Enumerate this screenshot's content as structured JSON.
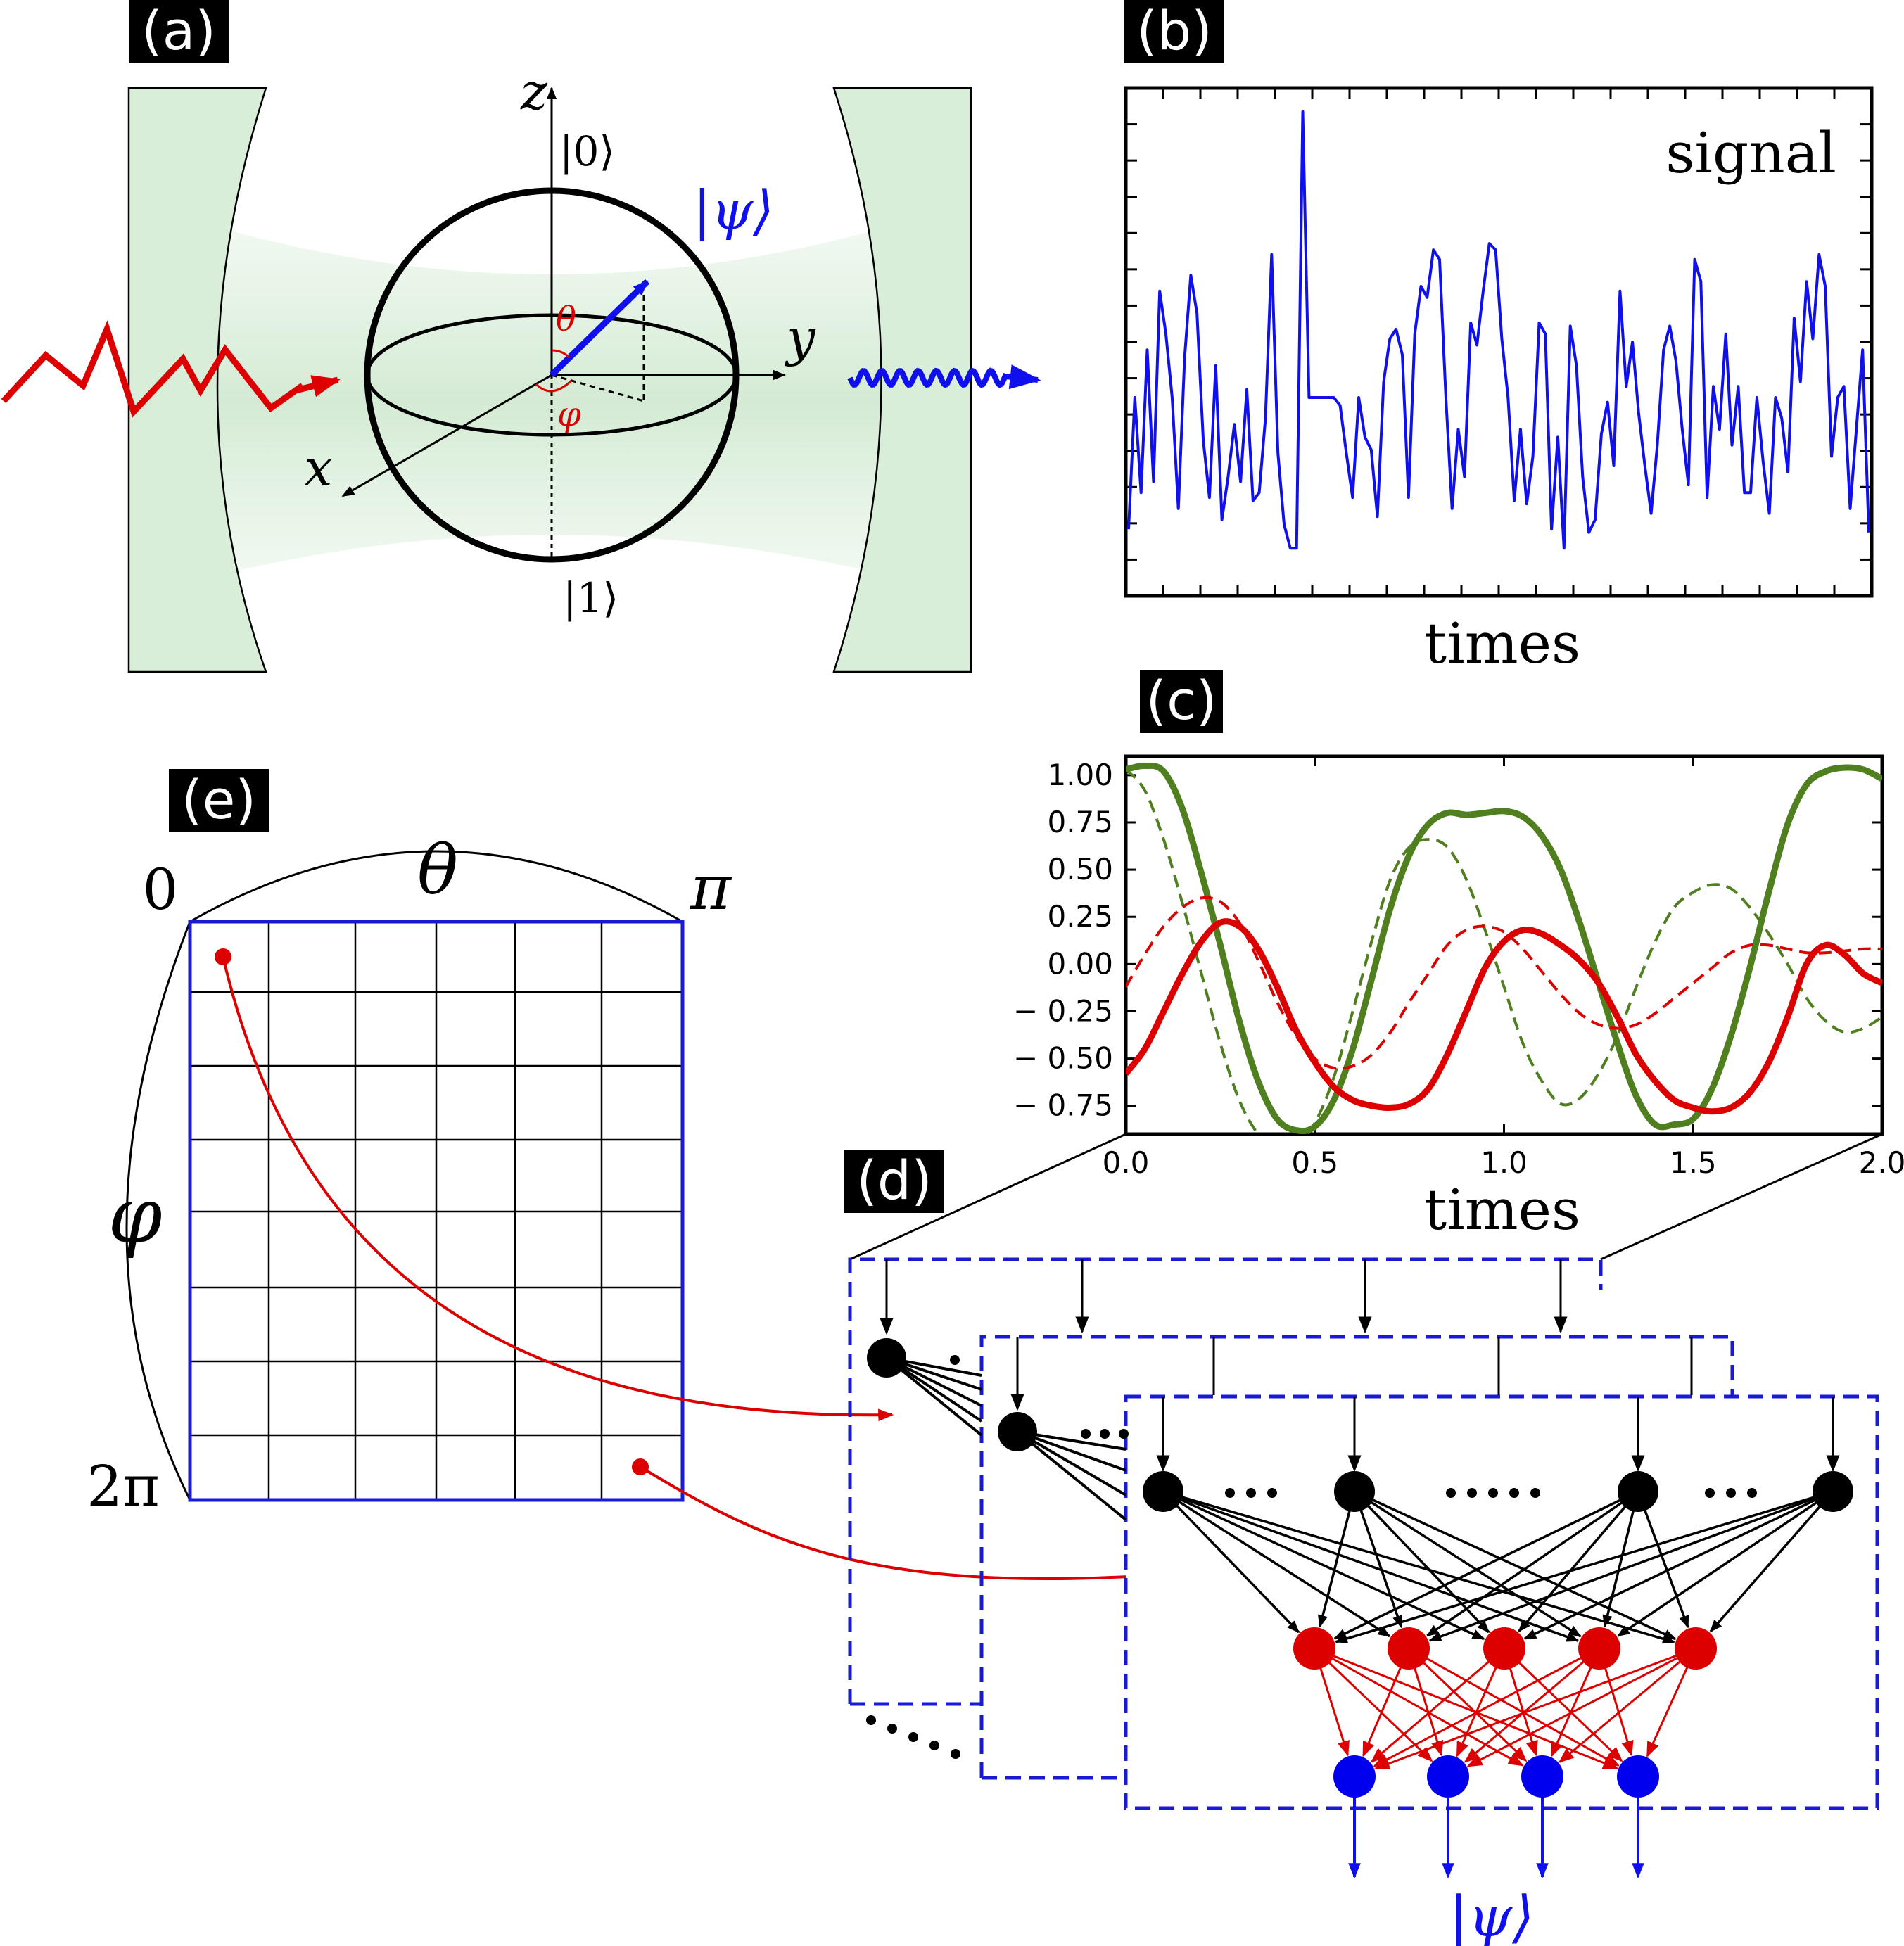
{
  "panels": {
    "a": {
      "tag": "(a)",
      "axis_z": "z",
      "axis_y": "y",
      "axis_x": "x",
      "ket_0": "|0⟩",
      "ket_1": "|1⟩",
      "psi": "|ψ⟩",
      "theta": "θ",
      "phi": "φ",
      "colors": {
        "mirror": "#d8eed8",
        "input_photon": "#dd0000",
        "output_photon": "#1010ee",
        "state_vector": "#1010ee"
      }
    },
    "b": {
      "tag": "(b)",
      "signal_label": "signal",
      "xlabel": "times"
    },
    "c": {
      "tag": "(c)",
      "xlabel": "times"
    },
    "d": {
      "tag": "(d)",
      "output_label": "|ψ⟩",
      "colors": {
        "input_nodes": "#000000",
        "hidden_nodes": "#dd0000",
        "output_nodes": "#0000ee",
        "frames": "#1a1ad6"
      }
    },
    "e": {
      "tag": "(e)",
      "theta_label": "θ",
      "phi_label": "φ",
      "theta_start": "0",
      "theta_end": "π",
      "phi_end": "2π",
      "grid_columns": 6,
      "grid_rows": 8,
      "colors": {
        "grid_border": "#1a1ad6",
        "marker": "#dd0000"
      }
    }
  },
  "chart_data": [
    {
      "type": "line",
      "panel": "b",
      "title": "signal",
      "xlabel": "times",
      "ylabel": "",
      "tick_labels": false,
      "x": [
        0,
        1,
        2,
        3,
        4,
        5,
        6,
        7,
        8,
        9,
        10,
        11,
        12,
        13,
        14,
        15,
        16,
        17,
        18,
        19,
        20,
        21,
        22,
        23,
        24,
        25,
        26,
        27,
        28,
        29,
        30,
        31,
        32,
        33,
        34,
        35,
        36,
        37,
        38,
        39,
        40,
        41,
        42,
        43,
        44,
        45,
        46,
        47,
        48,
        49,
        50,
        51,
        52,
        53,
        54,
        55,
        56,
        57,
        58,
        59,
        60,
        61,
        62,
        63,
        64,
        65,
        66,
        67,
        68,
        69,
        70,
        71,
        72,
        73,
        74,
        75,
        76,
        77,
        78,
        79,
        80,
        81,
        82,
        83,
        84,
        85,
        86,
        87,
        88,
        89,
        90,
        91,
        92,
        93,
        94,
        95,
        96,
        97,
        98,
        99,
        100,
        101,
        102,
        103,
        104,
        105,
        106,
        107,
        108,
        109,
        110,
        111,
        112,
        113,
        114,
        115,
        116,
        117,
        118,
        119
      ],
      "values": [
        -0.78,
        0.05,
        -0.55,
        0.35,
        -0.48,
        0.72,
        0.45,
        0.05,
        -0.65,
        0.3,
        0.82,
        0.58,
        -0.22,
        -0.58,
        0.25,
        -0.72,
        -0.45,
        -0.12,
        -0.48,
        0.1,
        -0.6,
        -0.55,
        -0.08,
        0.95,
        -0.3,
        -0.75,
        -0.9,
        -0.9,
        1.85,
        0.05,
        0.05,
        0.05,
        0.05,
        0.05,
        0.0,
        -0.3,
        -0.58,
        0.05,
        -0.2,
        -0.28,
        -0.7,
        0.15,
        0.42,
        0.48,
        0.32,
        -0.58,
        0.45,
        0.75,
        0.68,
        0.98,
        0.92,
        0.05,
        -0.65,
        -0.15,
        -0.45,
        0.52,
        0.38,
        0.72,
        1.02,
        0.98,
        0.42,
        0.05,
        -0.6,
        -0.15,
        -0.62,
        -0.32,
        0.52,
        0.45,
        -0.78,
        -0.2,
        -0.9,
        0.5,
        0.25,
        -0.45,
        -0.8,
        -0.72,
        -0.18,
        0.02,
        -0.38,
        0.72,
        0.12,
        0.4,
        -0.05,
        -0.38,
        -0.68,
        -0.25,
        0.35,
        0.5,
        0.28,
        -0.15,
        -0.5,
        0.92,
        0.78,
        -0.58,
        0.12,
        -0.15,
        0.45,
        -0.25,
        0.12,
        -0.55,
        -0.55,
        0.05,
        -0.35,
        -0.68,
        0.05,
        -0.08,
        -0.42,
        0.55,
        0.15,
        0.78,
        0.42,
        0.95,
        0.75,
        -0.32,
        0.05,
        0.12,
        -0.65,
        -0.15,
        0.35,
        -0.8
      ],
      "ylim": [
        -1.2,
        2.0
      ],
      "color": "#1010ee",
      "grid": false
    },
    {
      "type": "line",
      "panel": "c",
      "xlabel": "times",
      "ylabel": "",
      "xlim": [
        0.0,
        2.0
      ],
      "ylim": [
        -0.9,
        1.1
      ],
      "xticks": [
        "0.0",
        "0.5",
        "1.0",
        "1.5",
        "2.0"
      ],
      "yticks": [
        "1.00",
        "0.75",
        "0.50",
        "0.25",
        "0.00",
        "− 0.25",
        "− 0.50",
        "− 0.75"
      ],
      "grid": false,
      "x": [
        0.0,
        0.05,
        0.1,
        0.15,
        0.2,
        0.25,
        0.3,
        0.35,
        0.4,
        0.45,
        0.5,
        0.55,
        0.6,
        0.65,
        0.7,
        0.75,
        0.8,
        0.85,
        0.9,
        0.95,
        1.0,
        1.05,
        1.1,
        1.15,
        1.2,
        1.25,
        1.3,
        1.35,
        1.4,
        1.45,
        1.5,
        1.55,
        1.6,
        1.65,
        1.7,
        1.75,
        1.8,
        1.85,
        1.9,
        1.95,
        2.0
      ],
      "series": [
        {
          "style": "solid",
          "color": "#4f7f1f",
          "values": [
            1.03,
            1.05,
            1.02,
            0.82,
            0.48,
            0.1,
            -0.3,
            -0.62,
            -0.82,
            -0.88,
            -0.86,
            -0.72,
            -0.45,
            -0.08,
            0.3,
            0.58,
            0.74,
            0.8,
            0.79,
            0.8,
            0.81,
            0.78,
            0.68,
            0.5,
            0.22,
            -0.1,
            -0.42,
            -0.7,
            -0.85,
            -0.85,
            -0.82,
            -0.66,
            -0.38,
            -0.02,
            0.38,
            0.74,
            0.95,
            1.02,
            1.04,
            1.03,
            0.98
          ]
        },
        {
          "style": "dashed",
          "color": "#4f7f1f",
          "values": [
            1.03,
            0.92,
            0.66,
            0.32,
            -0.05,
            -0.42,
            -0.72,
            -0.9,
            -0.98,
            -0.96,
            -0.84,
            -0.6,
            -0.25,
            0.12,
            0.45,
            0.62,
            0.66,
            0.62,
            0.45,
            0.18,
            -0.12,
            -0.42,
            -0.62,
            -0.74,
            -0.71,
            -0.58,
            -0.38,
            -0.12,
            0.12,
            0.3,
            0.38,
            0.42,
            0.4,
            0.3,
            0.16,
            0.0,
            -0.18,
            -0.3,
            -0.36,
            -0.34,
            -0.28
          ]
        },
        {
          "style": "solid",
          "color": "#dd0000",
          "values": [
            -0.58,
            -0.45,
            -0.25,
            -0.05,
            0.12,
            0.22,
            0.2,
            0.08,
            -0.12,
            -0.35,
            -0.52,
            -0.65,
            -0.72,
            -0.75,
            -0.76,
            -0.74,
            -0.66,
            -0.48,
            -0.25,
            -0.02,
            0.12,
            0.18,
            0.16,
            0.1,
            0.02,
            -0.1,
            -0.28,
            -0.48,
            -0.62,
            -0.72,
            -0.76,
            -0.78,
            -0.76,
            -0.68,
            -0.52,
            -0.28,
            0.0,
            0.1,
            0.05,
            -0.05,
            -0.1
          ]
        },
        {
          "style": "dashed",
          "color": "#dd0000",
          "values": [
            -0.12,
            0.05,
            0.2,
            0.3,
            0.35,
            0.33,
            0.22,
            0.02,
            -0.2,
            -0.38,
            -0.5,
            -0.55,
            -0.54,
            -0.48,
            -0.36,
            -0.2,
            -0.05,
            0.1,
            0.18,
            0.2,
            0.17,
            0.08,
            -0.04,
            -0.16,
            -0.26,
            -0.32,
            -0.34,
            -0.32,
            -0.26,
            -0.18,
            -0.1,
            -0.02,
            0.06,
            0.1,
            0.1,
            0.08,
            0.06,
            0.06,
            0.07,
            0.08,
            0.08
          ]
        }
      ]
    }
  ]
}
